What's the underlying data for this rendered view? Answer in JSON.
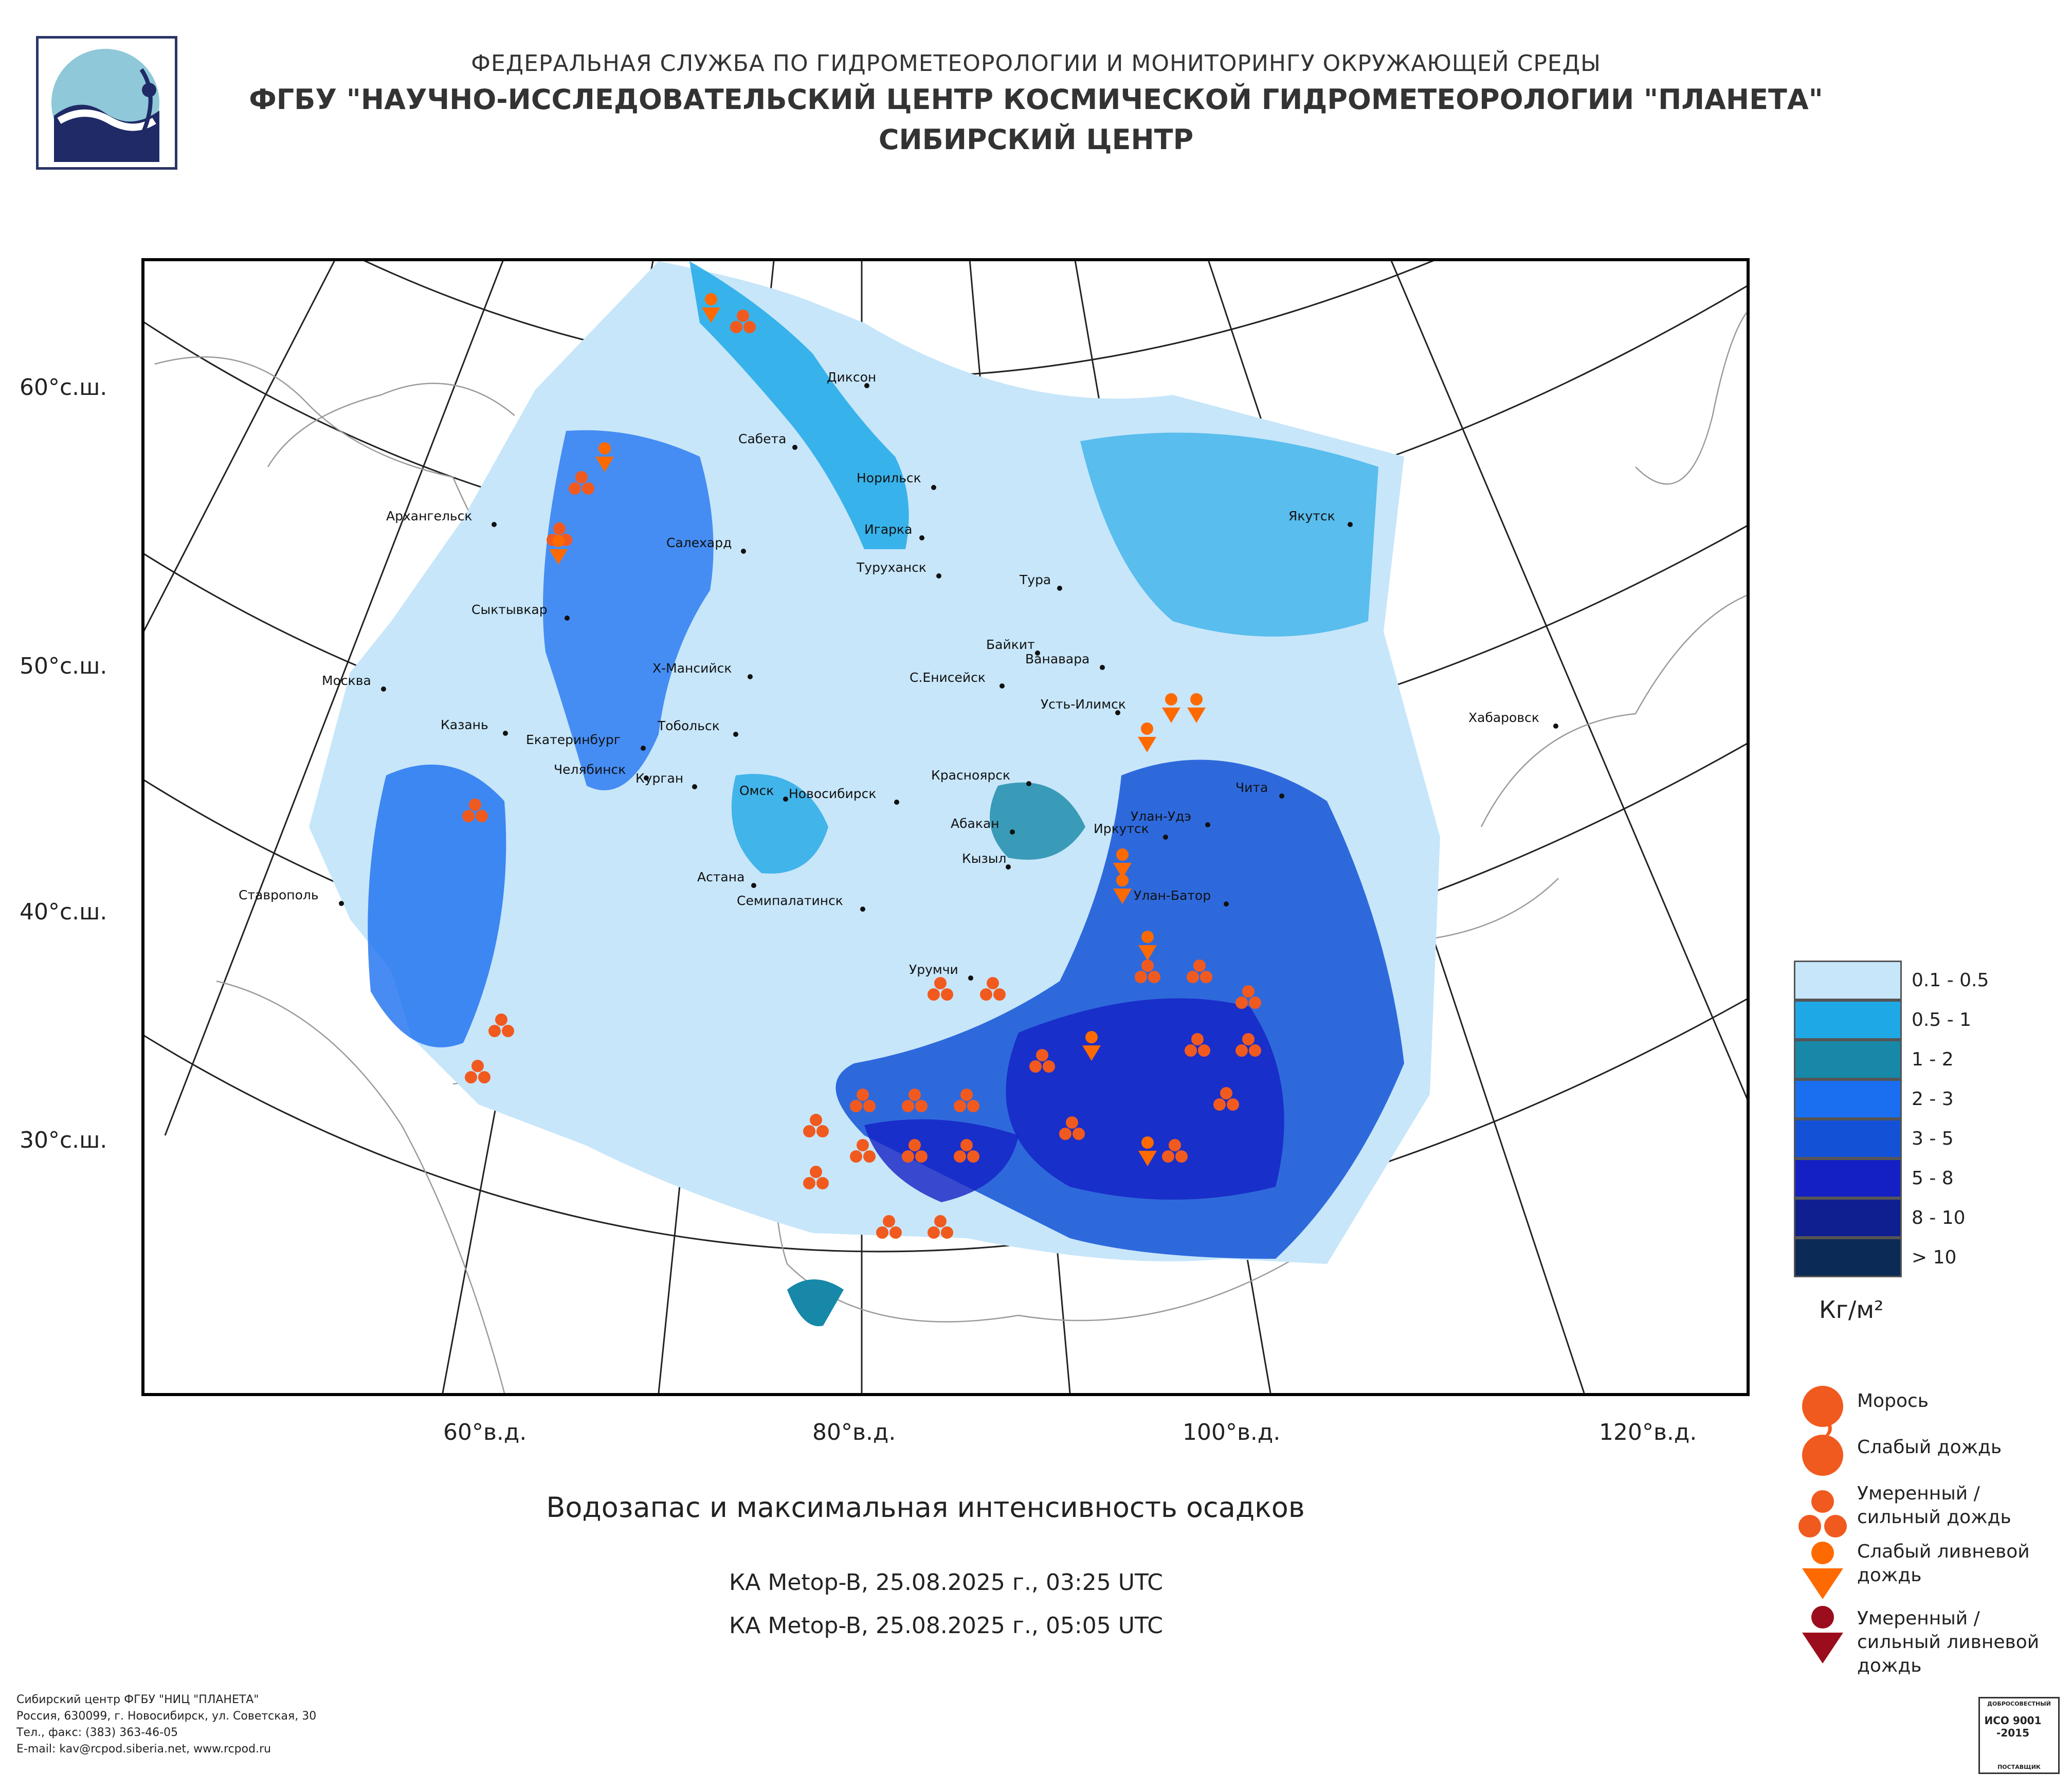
{
  "header": {
    "line1": "ФЕДЕРАЛЬНАЯ СЛУЖБА ПО ГИДРОМЕТЕОРОЛОГИИ И МОНИТОРИНГУ ОКРУЖАЮЩЕЙ СРЕДЫ",
    "line2": "ФГБУ \"НАУЧНО-ИССЛЕДОВАТЕЛЬСКИЙ ЦЕНТР КОСМИЧЕСКОЙ ГИДРОМЕТЕОРОЛОГИИ \"ПЛАНЕТА\"",
    "line3": "СИБИРСКИЙ ЦЕНТР"
  },
  "map": {
    "lat_labels": [
      "60°с.ш.",
      "50°с.ш.",
      "40°с.ш.",
      "30°с.ш."
    ],
    "lon_labels": [
      "60°в.д.",
      "80°в.д.",
      "100°в.д.",
      "120°в.д."
    ],
    "cities": [
      "Диксон",
      "Сабета",
      "Норильск",
      "Архангельск",
      "Салехард",
      "Игарка",
      "Туруханск",
      "Якутск",
      "Тура",
      "Сыктывкар",
      "Байкит",
      "Ванавара",
      "Москва",
      "Х-Мансийск",
      "С.Енисейск",
      "Усть-Илимск",
      "Хабаровск",
      "Казань",
      "Екатеринбург",
      "Тобольск",
      "Челябинск",
      "Курган",
      "Красноярск",
      "Чита",
      "Омск",
      "Новосибирск",
      "Абакан",
      "Улан-Удэ",
      "Иркутск",
      "Кызыл",
      "Астана",
      "Ставрополь",
      "Семипалатинск",
      "Улан-Батор",
      "Урумчи"
    ]
  },
  "chart_title": "Водозапас и максимальная интенсивность осадков",
  "satellite_passes": [
    "КА Metop-B, 25.08.2025 г., 03:25 UTC",
    "КА Metop-B, 25.08.2025 г., 05:05 UTC"
  ],
  "scale": {
    "classes": [
      {
        "label": "0.1 - 0.5",
        "color": "#c7e6fa"
      },
      {
        "label": "0.5 - 1",
        "color": "#1fa8e6"
      },
      {
        "label": "1 - 2",
        "color": "#1788a8"
      },
      {
        "label": "2 - 3",
        "color": "#1a6ff0"
      },
      {
        "label": "3 - 5",
        "color": "#1352d6"
      },
      {
        "label": "5 - 8",
        "color": "#1420c4"
      },
      {
        "label": "8 - 10",
        "color": "#0f1f8f"
      },
      {
        "label": "> 10",
        "color": "#0b2a55"
      }
    ],
    "unit": "Кг/м²"
  },
  "legend": {
    "items": [
      {
        "label": "Морось",
        "icon": "drizzle-icon"
      },
      {
        "label": "Слабый дождь",
        "icon": "light-rain-icon"
      },
      {
        "label": "Умеренный / сильный дождь",
        "icon": "moderate-rain-icon"
      },
      {
        "label": "Слабый ливневой дождь",
        "icon": "light-shower-icon"
      },
      {
        "label": "Умеренный / сильный ливневой дождь",
        "icon": "heavy-shower-icon"
      }
    ],
    "colors": {
      "rain": "#f15a1f",
      "shower": "#ff6a00",
      "heavy_shower": "#9b0d1d"
    }
  },
  "footer": {
    "line1": "Сибирский центр ФГБУ \"НИЦ \"ПЛАНЕТА\"",
    "line2": "Россия, 630099, г. Новосибирск, ул. Советская, 30",
    "line3": "Тел., факс: (383) 363-46-05",
    "line4": "E-mail: kav@rcpod.siberia.net, www.rcpod.ru"
  },
  "certification": {
    "top": "ДОБРОСОВЕСТНЫЙ",
    "standard": "ИСО 9001 -2015",
    "bottom": "ПОСТАВЩИК"
  }
}
